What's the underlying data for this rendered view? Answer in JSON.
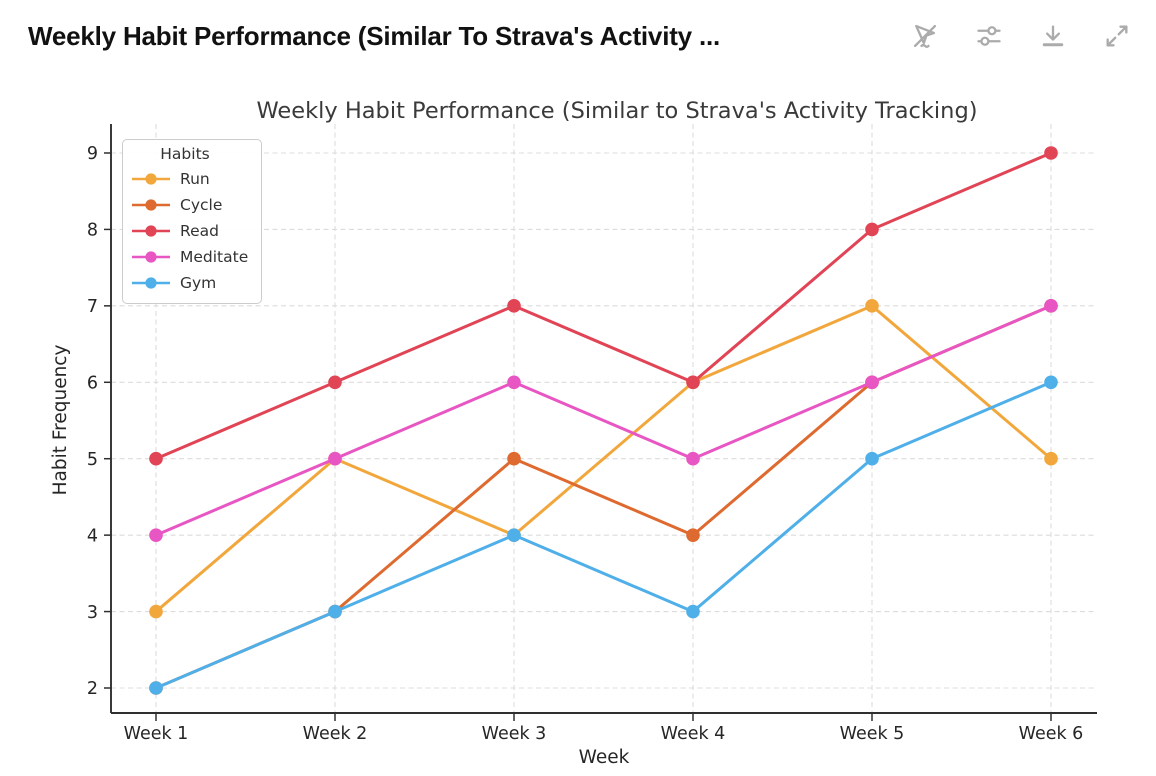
{
  "header": {
    "title": "Weekly Habit Performance (Similar To Strava's Activity ...",
    "icons": [
      {
        "name": "interactivity-off-icon",
        "label": "Interactivity off"
      },
      {
        "name": "settings-sliders-icon",
        "label": "Chart settings"
      },
      {
        "name": "download-icon",
        "label": "Download chart"
      },
      {
        "name": "expand-icon",
        "label": "Expand chart"
      }
    ],
    "icon_color": "#ABABAB",
    "title_color": "#111111"
  },
  "chart_data": {
    "type": "line",
    "title": "Weekly Habit Performance (Similar to Strava's Activity Tracking)",
    "xlabel": "Week",
    "ylabel": "Habit Frequency",
    "categories": [
      "Week 1",
      "Week 2",
      "Week 3",
      "Week 4",
      "Week 5",
      "Week 6"
    ],
    "yticks": [
      2,
      3,
      4,
      5,
      6,
      7,
      8,
      9
    ],
    "ylim": [
      1.6,
      9.4
    ],
    "grid": true,
    "legend": {
      "title": "Habits",
      "position": "upper left"
    },
    "series": [
      {
        "name": "Run",
        "color": "#F2A73D",
        "values": [
          3,
          5,
          4,
          6,
          7,
          5
        ]
      },
      {
        "name": "Cycle",
        "color": "#DE6A2F",
        "values": [
          2,
          3,
          5,
          4,
          6,
          7
        ]
      },
      {
        "name": "Read",
        "color": "#E04455",
        "values": [
          5,
          6,
          7,
          6,
          8,
          9
        ]
      },
      {
        "name": "Meditate",
        "color": "#E856C3",
        "values": [
          4,
          5,
          6,
          5,
          6,
          7
        ]
      },
      {
        "name": "Gym",
        "color": "#4FAFE9",
        "values": [
          2,
          3,
          4,
          3,
          5,
          6
        ]
      }
    ],
    "marker": "circle",
    "grid_color": "#DCDCDC",
    "axis_color": "#2F2F2F",
    "text_color": "#262626",
    "title_color": "#3A3A3A"
  }
}
